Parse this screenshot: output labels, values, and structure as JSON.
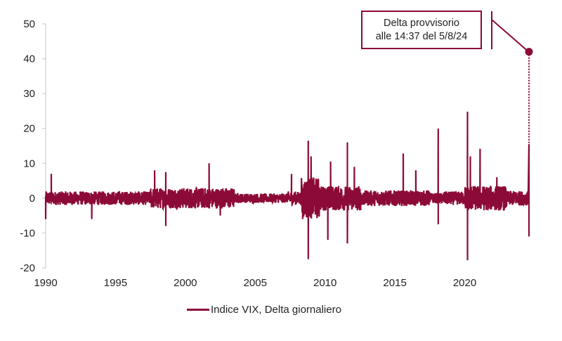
{
  "chart_data": {
    "type": "line",
    "title": "",
    "xlabel": "",
    "ylabel": "",
    "xlim": [
      1990,
      2024.6
    ],
    "ylim": [
      -20,
      50
    ],
    "y_ticks": [
      50,
      40,
      30,
      20,
      10,
      0,
      -10,
      -20
    ],
    "x_ticks": [
      1990,
      1995,
      2000,
      2005,
      2010,
      2015,
      2020
    ],
    "grid": false,
    "legend_position": "bottom",
    "series": [
      {
        "name": "Indice VIX, Delta giornaliero",
        "color": "#8c0a37",
        "notable_points": [
          {
            "x": 1990.0,
            "y": -6
          },
          {
            "x": 1990.4,
            "y": 7
          },
          {
            "x": 1993.3,
            "y": -6
          },
          {
            "x": 1997.8,
            "y": 8
          },
          {
            "x": 1998.6,
            "y": 7.5
          },
          {
            "x": 1998.6,
            "y": -8
          },
          {
            "x": 2001.7,
            "y": 10
          },
          {
            "x": 2002.5,
            "y": -5
          },
          {
            "x": 2007.6,
            "y": 7
          },
          {
            "x": 2008.4,
            "y": -6
          },
          {
            "x": 2008.8,
            "y": 16.5
          },
          {
            "x": 2008.8,
            "y": -17.5
          },
          {
            "x": 2009.0,
            "y": 12
          },
          {
            "x": 2010.2,
            "y": -12
          },
          {
            "x": 2010.4,
            "y": 10.5
          },
          {
            "x": 2011.6,
            "y": 16
          },
          {
            "x": 2011.6,
            "y": -13
          },
          {
            "x": 2012.1,
            "y": 9
          },
          {
            "x": 2015.6,
            "y": 12.8
          },
          {
            "x": 2016.5,
            "y": 8
          },
          {
            "x": 2018.1,
            "y": 20
          },
          {
            "x": 2018.1,
            "y": -7.5
          },
          {
            "x": 2020.2,
            "y": 24.8
          },
          {
            "x": 2020.2,
            "y": -17.8
          },
          {
            "x": 2020.4,
            "y": 12
          },
          {
            "x": 2021.1,
            "y": 14.2
          },
          {
            "x": 2022.3,
            "y": 6
          },
          {
            "x": 2024.6,
            "y": 15.5
          },
          {
            "x": 2024.6,
            "y": -11
          }
        ],
        "typical_range": [
          -4,
          4
        ]
      }
    ],
    "annotations": [
      {
        "text": "Delta provvisorio alle 14:37 del 5/8/24",
        "x": 2024.6,
        "y": 42,
        "marker": "dot",
        "connector": "dotted-vertical"
      }
    ]
  },
  "annotation": {
    "line1": "Delta provvisorio",
    "line2": "alle 14:37 del 5/8/24"
  },
  "legend": {
    "label": "Indice VIX, Delta giornaliero"
  },
  "axes": {
    "y": [
      "50",
      "40",
      "30",
      "20",
      "10",
      "0",
      "-10",
      "-20"
    ],
    "x": [
      "1990",
      "1995",
      "2000",
      "2005",
      "2010",
      "2015",
      "2020"
    ]
  },
  "colors": {
    "series": "#8c0a37",
    "axis": "#d9d9d9"
  }
}
